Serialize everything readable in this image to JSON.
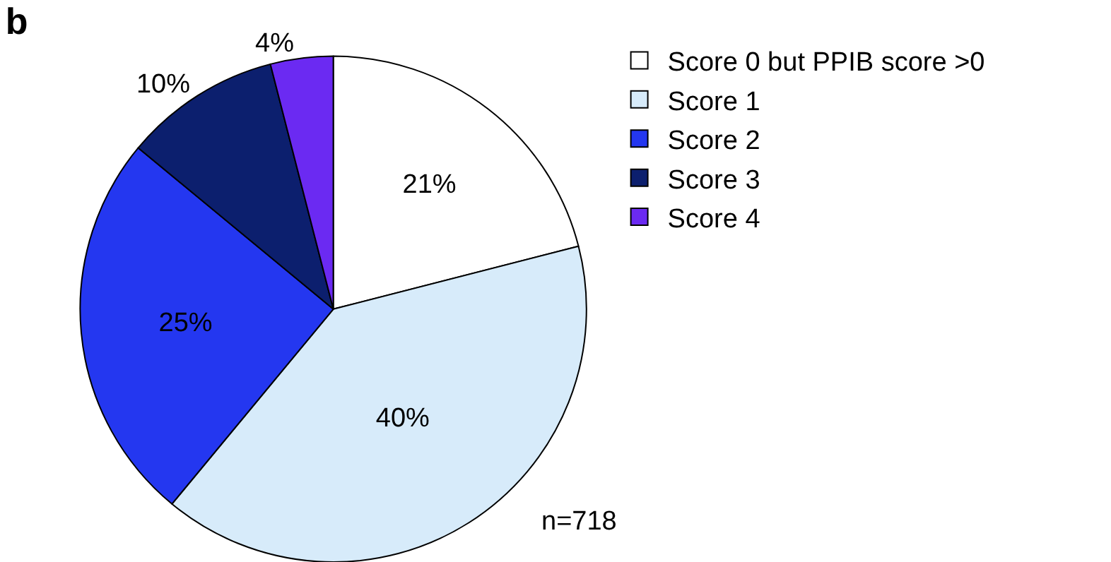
{
  "chart_data": {
    "type": "pie",
    "title": "b",
    "categories": [
      "Score 0 but PPIB score >0",
      "Score 1",
      "Score 2",
      "Score 3",
      "Score 4"
    ],
    "values": [
      21,
      40,
      25,
      10,
      4
    ],
    "colors": [
      "#ffffff",
      "#d7ebfa",
      "#2437f0",
      "#0c1f6e",
      "#6b2af2"
    ],
    "value_labels": [
      "21%",
      "40%",
      "25%",
      "10%",
      "4%"
    ],
    "legend": "top right",
    "annotations": [
      "n=718"
    ]
  }
}
